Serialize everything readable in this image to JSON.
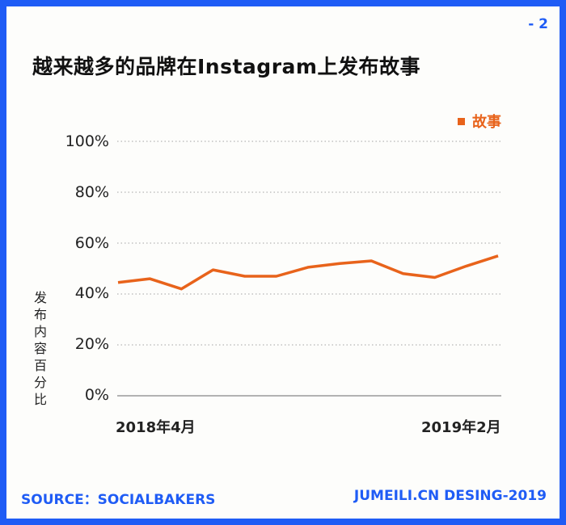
{
  "page_number": "- 2",
  "title": "越来越多的品牌在Instagram上发布故事",
  "footer": {
    "source": "SOURCE：SOCIALBAKERS",
    "credit": "JUMEILI.CN DESING-2019"
  },
  "colors": {
    "brand_blue": "#1f5cf5",
    "series_orange": "#e8631b"
  },
  "chart_data": {
    "type": "line",
    "series": [
      {
        "name": "故事",
        "values": [
          44.5,
          46,
          42,
          49.5,
          47,
          47,
          50.5,
          52,
          53,
          48,
          46.5,
          51,
          55
        ]
      }
    ],
    "x_tick_labels": [
      "2018年4月",
      "2019年2月"
    ],
    "y_ticks": [
      "100%",
      "80%",
      "60%",
      "40%",
      "20%",
      "0%"
    ],
    "ylabel": "发布内容百分比",
    "ylim": [
      0,
      100
    ],
    "grid": "horizontal dotted",
    "legend_position": "top-right"
  }
}
